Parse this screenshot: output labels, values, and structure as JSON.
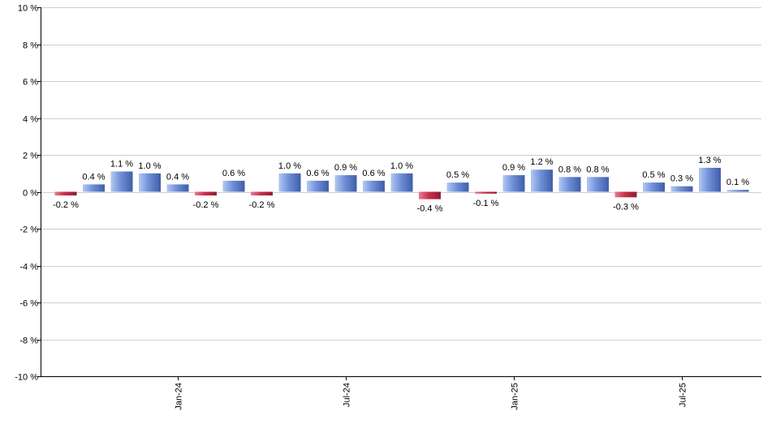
{
  "chart_data": {
    "type": "bar",
    "values": [
      -0.2,
      0.4,
      1.1,
      1.0,
      0.4,
      -0.2,
      0.6,
      -0.2,
      1.0,
      0.6,
      0.9,
      0.6,
      1.0,
      -0.4,
      0.5,
      -0.1,
      0.9,
      1.2,
      0.8,
      0.8,
      -0.3,
      0.5,
      0.3,
      1.3,
      0.1
    ],
    "x_ticks": [
      {
        "label": "Jan-24",
        "index": 4
      },
      {
        "label": "Jul-24",
        "index": 10
      },
      {
        "label": "Jan-25",
        "index": 16
      },
      {
        "label": "Jul-25",
        "index": 22
      }
    ],
    "y_ticks": [
      10,
      8,
      6,
      4,
      2,
      0,
      -2,
      -4,
      -6,
      -8,
      -10
    ],
    "ylim": [
      -10,
      10
    ],
    "value_suffix": " %",
    "grid": true,
    "colors": {
      "positive": "#6f8fd8",
      "positive_light": "#b3c8f2",
      "positive_dark": "#3f5da8",
      "negative": "#c8304c",
      "negative_light": "#e87d91",
      "negative_dark": "#8f1b31",
      "grid": "#cfcfcf",
      "axis": "#000000"
    }
  }
}
